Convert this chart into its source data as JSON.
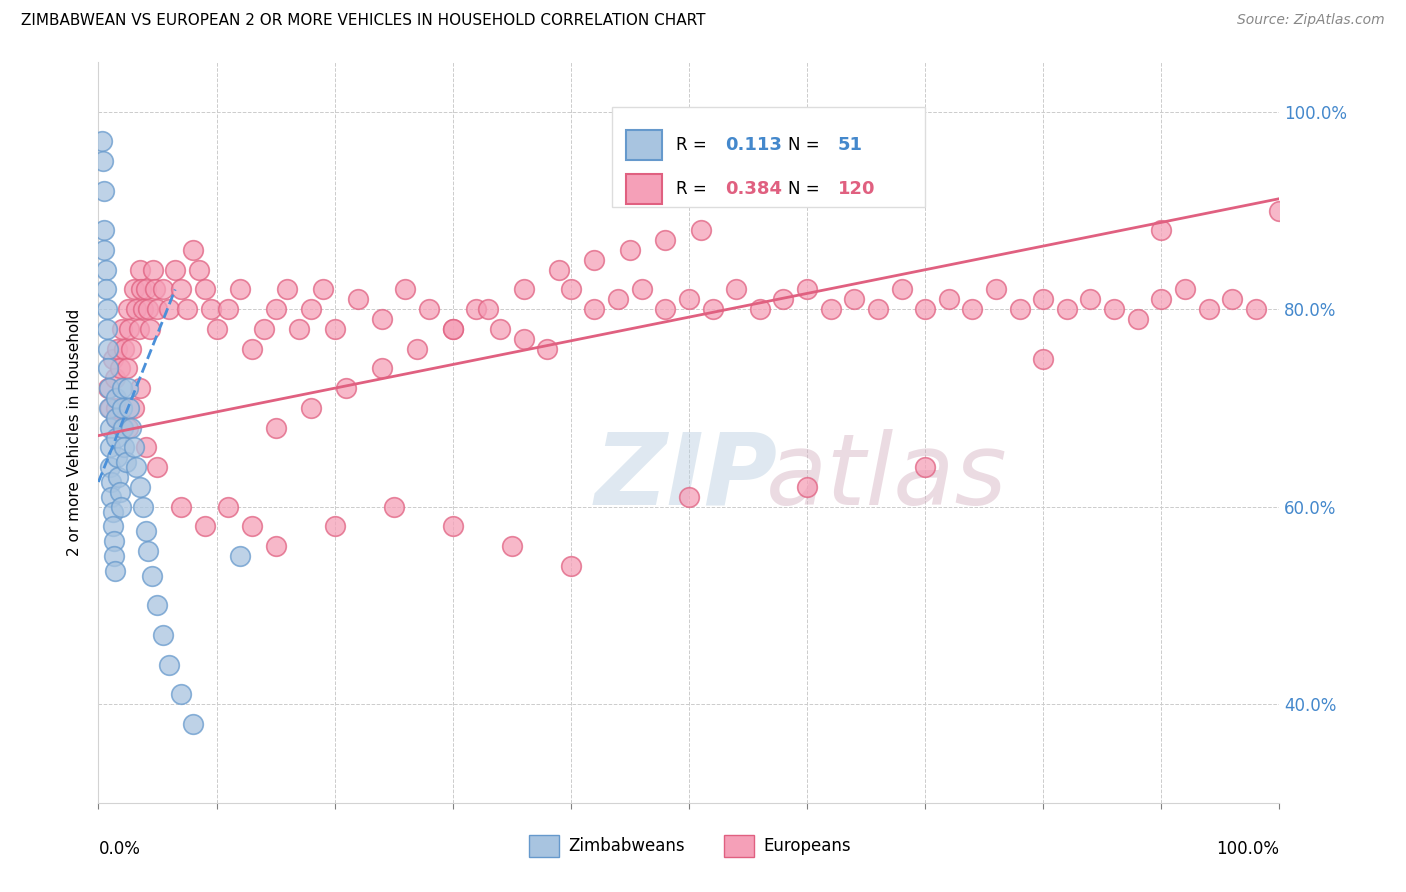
{
  "title": "ZIMBABWEAN VS EUROPEAN 2 OR MORE VEHICLES IN HOUSEHOLD CORRELATION CHART",
  "source": "Source: ZipAtlas.com",
  "ylabel": "2 or more Vehicles in Household",
  "xlim": [
    0.0,
    1.0
  ],
  "ylim": [
    0.3,
    1.05
  ],
  "ytick_values": [
    0.4,
    0.6,
    0.8,
    1.0
  ],
  "ytick_labels": [
    "40.0%",
    "60.0%",
    "80.0%",
    "100.0%"
  ],
  "legend_r_zim": "0.113",
  "legend_n_zim": "51",
  "legend_r_eur": "0.384",
  "legend_n_eur": "120",
  "zim_fill": "#a8c4e0",
  "zim_edge": "#6699cc",
  "eur_fill": "#f5a0b8",
  "eur_edge": "#e06080",
  "zim_trend_color": "#4a90d9",
  "eur_trend_color": "#e06080",
  "grid_color": "#cccccc",
  "zim_x": [
    0.003,
    0.004,
    0.005,
    0.005,
    0.005,
    0.006,
    0.006,
    0.007,
    0.007,
    0.008,
    0.008,
    0.009,
    0.009,
    0.01,
    0.01,
    0.01,
    0.011,
    0.011,
    0.012,
    0.012,
    0.013,
    0.013,
    0.014,
    0.015,
    0.015,
    0.015,
    0.016,
    0.017,
    0.018,
    0.019,
    0.02,
    0.02,
    0.021,
    0.022,
    0.023,
    0.025,
    0.026,
    0.028,
    0.03,
    0.032,
    0.035,
    0.038,
    0.04,
    0.042,
    0.045,
    0.05,
    0.055,
    0.06,
    0.07,
    0.08,
    0.12
  ],
  "zim_y": [
    0.97,
    0.95,
    0.92,
    0.88,
    0.86,
    0.84,
    0.82,
    0.8,
    0.78,
    0.76,
    0.74,
    0.72,
    0.7,
    0.68,
    0.66,
    0.64,
    0.625,
    0.61,
    0.595,
    0.58,
    0.565,
    0.55,
    0.535,
    0.71,
    0.69,
    0.67,
    0.65,
    0.63,
    0.615,
    0.6,
    0.72,
    0.7,
    0.68,
    0.66,
    0.645,
    0.72,
    0.7,
    0.68,
    0.66,
    0.64,
    0.62,
    0.6,
    0.575,
    0.555,
    0.53,
    0.5,
    0.47,
    0.44,
    0.41,
    0.38,
    0.55
  ],
  "eur_x": [
    0.008,
    0.01,
    0.012,
    0.014,
    0.015,
    0.016,
    0.018,
    0.02,
    0.022,
    0.024,
    0.025,
    0.026,
    0.028,
    0.03,
    0.032,
    0.034,
    0.035,
    0.036,
    0.038,
    0.04,
    0.042,
    0.044,
    0.046,
    0.048,
    0.05,
    0.055,
    0.06,
    0.065,
    0.07,
    0.075,
    0.08,
    0.085,
    0.09,
    0.095,
    0.1,
    0.11,
    0.12,
    0.13,
    0.14,
    0.15,
    0.16,
    0.17,
    0.18,
    0.19,
    0.2,
    0.22,
    0.24,
    0.26,
    0.28,
    0.3,
    0.32,
    0.34,
    0.36,
    0.38,
    0.4,
    0.42,
    0.44,
    0.46,
    0.48,
    0.5,
    0.52,
    0.54,
    0.56,
    0.58,
    0.6,
    0.62,
    0.64,
    0.66,
    0.68,
    0.7,
    0.72,
    0.74,
    0.76,
    0.78,
    0.8,
    0.82,
    0.84,
    0.86,
    0.88,
    0.9,
    0.92,
    0.94,
    0.96,
    0.98,
    1.0,
    0.015,
    0.025,
    0.035,
    0.02,
    0.03,
    0.04,
    0.05,
    0.07,
    0.09,
    0.11,
    0.13,
    0.15,
    0.2,
    0.25,
    0.3,
    0.35,
    0.4,
    0.5,
    0.6,
    0.7,
    0.8,
    0.9,
    0.15,
    0.18,
    0.21,
    0.24,
    0.27,
    0.3,
    0.33,
    0.36,
    0.39,
    0.42,
    0.45,
    0.48,
    0.51
  ],
  "eur_y": [
    0.72,
    0.7,
    0.75,
    0.73,
    0.69,
    0.76,
    0.74,
    0.78,
    0.76,
    0.74,
    0.8,
    0.78,
    0.76,
    0.82,
    0.8,
    0.78,
    0.84,
    0.82,
    0.8,
    0.82,
    0.8,
    0.78,
    0.84,
    0.82,
    0.8,
    0.82,
    0.8,
    0.84,
    0.82,
    0.8,
    0.86,
    0.84,
    0.82,
    0.8,
    0.78,
    0.8,
    0.82,
    0.76,
    0.78,
    0.8,
    0.82,
    0.78,
    0.8,
    0.82,
    0.78,
    0.81,
    0.79,
    0.82,
    0.8,
    0.78,
    0.8,
    0.78,
    0.77,
    0.76,
    0.82,
    0.8,
    0.81,
    0.82,
    0.8,
    0.81,
    0.8,
    0.82,
    0.8,
    0.81,
    0.82,
    0.8,
    0.81,
    0.8,
    0.82,
    0.8,
    0.81,
    0.8,
    0.82,
    0.8,
    0.81,
    0.8,
    0.81,
    0.8,
    0.79,
    0.81,
    0.82,
    0.8,
    0.81,
    0.8,
    0.9,
    0.7,
    0.68,
    0.72,
    0.68,
    0.7,
    0.66,
    0.64,
    0.6,
    0.58,
    0.6,
    0.58,
    0.56,
    0.58,
    0.6,
    0.58,
    0.56,
    0.54,
    0.61,
    0.62,
    0.64,
    0.75,
    0.88,
    0.68,
    0.7,
    0.72,
    0.74,
    0.76,
    0.78,
    0.8,
    0.82,
    0.84,
    0.85,
    0.86,
    0.87,
    0.88
  ],
  "zim_trendline_x": [
    0.0,
    0.065
  ],
  "zim_trendline_y": [
    0.625,
    0.82
  ],
  "eur_trendline_x": [
    0.0,
    1.0
  ],
  "eur_trendline_y": [
    0.672,
    0.912
  ]
}
